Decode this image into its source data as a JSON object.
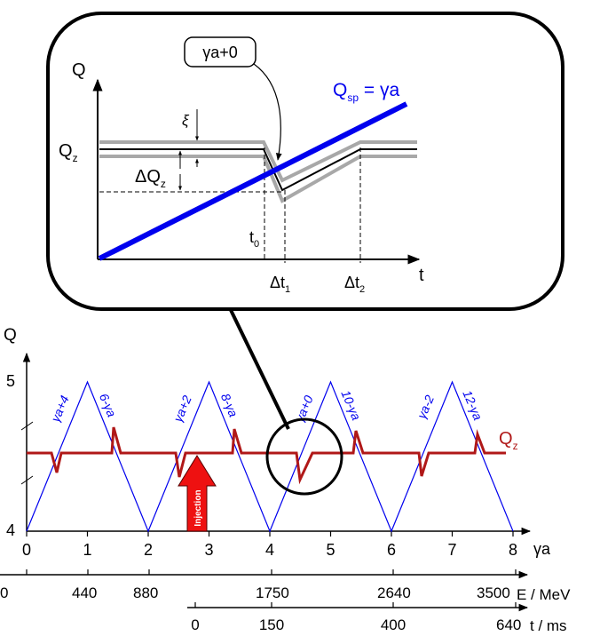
{
  "inset": {
    "y_label": "Q",
    "x_label": "t",
    "callout": "γa+0",
    "qsp_label": {
      "main": "Q",
      "sub": "sp",
      "rest": " = γa"
    },
    "qz_label": {
      "main": "Q",
      "sub": "z"
    },
    "xi_label": "ξ",
    "dqz_label": {
      "main": "ΔQ",
      "sub": "z"
    },
    "t0_label": {
      "main": "t",
      "sub": "0"
    },
    "dt1_label": {
      "main": "Δt",
      "sub": "1"
    },
    "dt2_label": {
      "main": "Δt",
      "sub": "2"
    }
  },
  "main": {
    "y_label": "Q",
    "y_ticks": [
      "5",
      "4"
    ],
    "x_label": "γa",
    "x_ticks": [
      "0",
      "1",
      "2",
      "3",
      "4",
      "5",
      "6",
      "7",
      "8"
    ],
    "qz_label": {
      "main": "Q",
      "sub": "z"
    },
    "injection_label": "Injection",
    "ramp_labels": [
      "γa+4",
      "6-γa",
      "γa+2",
      "8-γa",
      "γa+0",
      "10-γa",
      "γa-2",
      "12-γa"
    ]
  },
  "energy_axis": {
    "label": "E / MeV",
    "ticks": [
      "0",
      "440",
      "880",
      "1750",
      "2640",
      "3500"
    ]
  },
  "time_axis": {
    "label": "t / ms",
    "ticks": [
      "0",
      "150",
      "400",
      "640"
    ]
  },
  "colors": {
    "blue": "#0000ee",
    "dark_red": "#b01818",
    "arrow_red": "#ee1111",
    "gray": "#a8a8a8"
  }
}
